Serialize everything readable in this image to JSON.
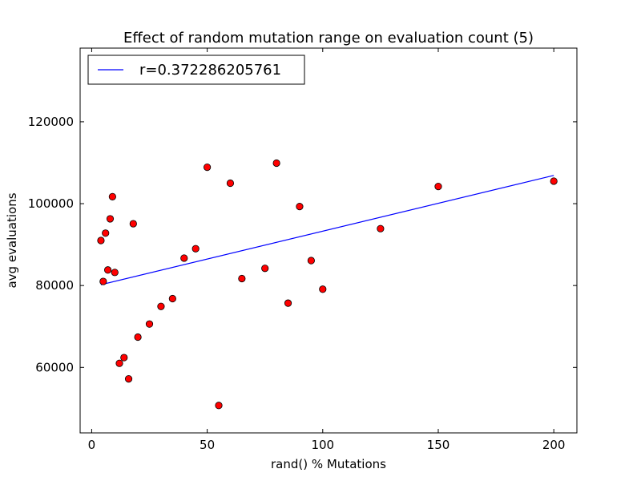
{
  "chart_data": {
    "type": "scatter",
    "title": "Effect of random mutation range on evaluation count (5)",
    "xlabel": "rand() % Mutations",
    "ylabel": "avg evaluations",
    "xlim": [
      -5,
      210
    ],
    "ylim": [
      44000,
      138000
    ],
    "xticks": [
      0,
      50,
      100,
      150,
      200
    ],
    "xtick_labels": [
      "0",
      "50",
      "100",
      "150",
      "200"
    ],
    "yticks": [
      60000,
      80000,
      100000,
      120000
    ],
    "ytick_labels": [
      "60000",
      "80000",
      "100000",
      "120000"
    ],
    "grid": false,
    "legend_position": "top-left",
    "points": [
      {
        "x": 4,
        "y": 91000
      },
      {
        "x": 5,
        "y": 81000
      },
      {
        "x": 6,
        "y": 92800
      },
      {
        "x": 7,
        "y": 83800
      },
      {
        "x": 8,
        "y": 96300
      },
      {
        "x": 9,
        "y": 101700
      },
      {
        "x": 10,
        "y": 83200
      },
      {
        "x": 12,
        "y": 61000
      },
      {
        "x": 14,
        "y": 62400
      },
      {
        "x": 16,
        "y": 57200
      },
      {
        "x": 18,
        "y": 95100
      },
      {
        "x": 20,
        "y": 67400
      },
      {
        "x": 25,
        "y": 70600
      },
      {
        "x": 30,
        "y": 74900
      },
      {
        "x": 35,
        "y": 76800
      },
      {
        "x": 40,
        "y": 86700
      },
      {
        "x": 45,
        "y": 89000
      },
      {
        "x": 50,
        "y": 108900
      },
      {
        "x": 55,
        "y": 50700
      },
      {
        "x": 60,
        "y": 105000
      },
      {
        "x": 65,
        "y": 81700
      },
      {
        "x": 75,
        "y": 84200
      },
      {
        "x": 80,
        "y": 109900
      },
      {
        "x": 85,
        "y": 75700
      },
      {
        "x": 90,
        "y": 99300
      },
      {
        "x": 95,
        "y": 86100
      },
      {
        "x": 100,
        "y": 79100
      },
      {
        "x": 125,
        "y": 93900
      },
      {
        "x": 150,
        "y": 104200
      },
      {
        "x": 200,
        "y": 105500
      }
    ],
    "fit_line": {
      "name": "r=0.372286205761",
      "x": [
        4,
        200
      ],
      "y": [
        80200,
        106900
      ]
    },
    "colors": {
      "points": "#ff0000",
      "point_edge": "#000000",
      "fit_line": "#0000ff"
    }
  }
}
